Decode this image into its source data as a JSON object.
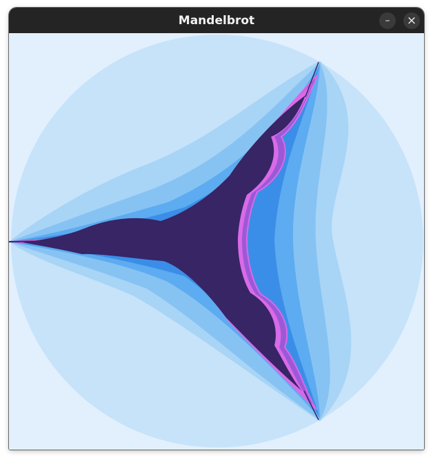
{
  "window": {
    "title": "Mandelbrot",
    "controls": [
      {
        "name": "minimize",
        "glyph": "–"
      },
      {
        "name": "close",
        "glyph": "×"
      }
    ]
  },
  "fractal": {
    "background": "#e2f0fd",
    "colors": {
      "outer_disc": "#c7e3f9",
      "band_1": "#a8d4f6",
      "band_2": "#86c3f3",
      "band_3": "#5dabf0",
      "band_4": "#3a8ee8",
      "edge_violet": "#9b59d6",
      "edge_magenta": "#d96ae8",
      "interior": "#372565"
    }
  }
}
